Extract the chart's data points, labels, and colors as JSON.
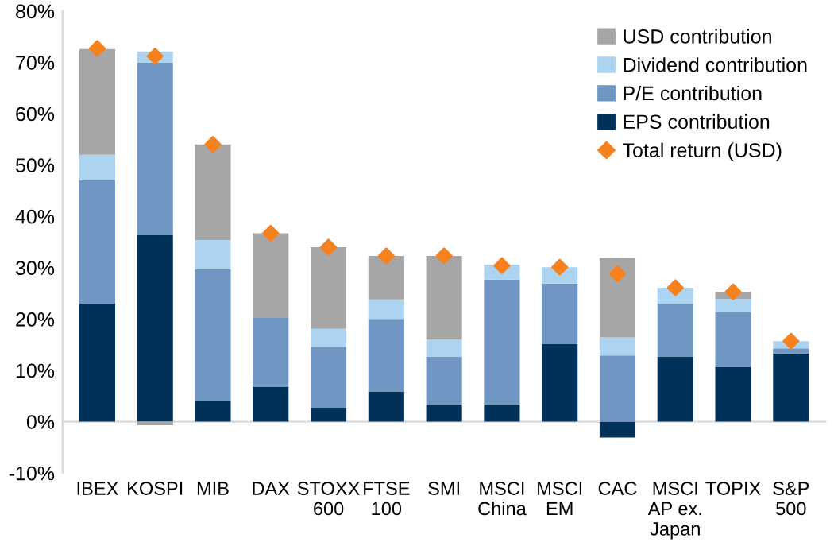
{
  "chart_data": {
    "type": "bar",
    "stacked": true,
    "categories": [
      "IBEX",
      "KOSPI",
      "MIB",
      "DAX",
      "STOXX\n600",
      "FTSE\n100",
      "SMI",
      "MSCI\nChina",
      "MSCI\nEM",
      "CAC",
      "MSCI\nAP ex.\nJapan",
      "TOPIX",
      "S&P\n500"
    ],
    "series": [
      {
        "name": "EPS contribution",
        "color": "#003259",
        "values": [
          23,
          36.3,
          4.2,
          6.8,
          2.7,
          5.9,
          3.4,
          3.4,
          15.1,
          -3.1,
          12.7,
          10.7,
          13.3
        ]
      },
      {
        "name": "P/E contribution",
        "color": "#7096c4",
        "values": [
          24,
          33.6,
          25.5,
          13.4,
          11.9,
          14.1,
          9.3,
          24.3,
          11.8,
          12.9,
          10.3,
          10.6,
          1
        ]
      },
      {
        "name": "Dividend contribution",
        "color": "#acd3f0",
        "values": [
          5,
          2.2,
          5.7,
          0,
          3.5,
          3.8,
          3.3,
          2.9,
          3.2,
          3.5,
          3.1,
          2.6,
          1.4
        ]
      },
      {
        "name": "USD contribution",
        "color": "#a6a6a6",
        "values": [
          20.6,
          -0.7,
          18.6,
          16.5,
          15.9,
          8.5,
          16.3,
          0,
          0,
          15.5,
          0,
          1.4,
          0
        ]
      },
      {
        "name": "Total return (USD)",
        "type": "scatter",
        "marker": "diamond",
        "color": "#f5821f",
        "values": [
          72.7,
          71.2,
          54,
          36.7,
          34,
          32.3,
          32.3,
          30.4,
          30.1,
          28.8,
          26.1,
          25.3,
          15.7
        ]
      }
    ],
    "ylim": [
      -10,
      80
    ],
    "yticks": [
      {
        "value": -10,
        "label": "-10%"
      },
      {
        "value": 0,
        "label": "0%"
      },
      {
        "value": 10,
        "label": "10%"
      },
      {
        "value": 20,
        "label": "20%"
      },
      {
        "value": 30,
        "label": "30%"
      },
      {
        "value": 40,
        "label": "40%"
      },
      {
        "value": 50,
        "label": "50%"
      },
      {
        "value": 60,
        "label": "60%"
      },
      {
        "value": 70,
        "label": "70%"
      },
      {
        "value": 80,
        "label": "80%"
      }
    ],
    "legend": "top right"
  }
}
